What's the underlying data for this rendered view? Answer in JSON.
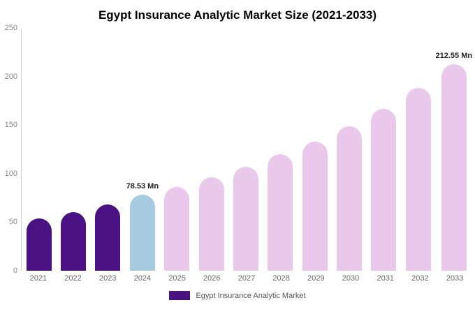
{
  "chart_data": {
    "type": "bar",
    "title": "Egypt Insurance Analytic Market Size (2021-2033)",
    "categories": [
      "2021",
      "2022",
      "2023",
      "2024",
      "2025",
      "2026",
      "2027",
      "2028",
      "2029",
      "2030",
      "2031",
      "2032",
      "2033"
    ],
    "values": [
      54,
      60,
      68,
      78.53,
      86,
      96,
      107,
      120,
      133,
      149,
      167,
      188,
      212.55
    ],
    "unit": "Mn",
    "ylim": [
      0,
      250
    ],
    "yticks": [
      0,
      50,
      100,
      150,
      200,
      250
    ],
    "grid": false,
    "bar_colors": [
      "#4b1284",
      "#4b1284",
      "#4b1284",
      "#a6cbe0",
      "#e9c8ec",
      "#e9c8ec",
      "#e9c8ec",
      "#e9c8ec",
      "#e9c8ec",
      "#e9c8ec",
      "#e9c8ec",
      "#e9c8ec",
      "#e9c8ec"
    ],
    "annotations": [
      {
        "category": "2024",
        "text": "78.53 Mn"
      },
      {
        "category": "2033",
        "text": "212.55 Mn"
      }
    ],
    "legend": {
      "position": "bottom",
      "items": [
        {
          "label": "Egypt Insurance Analytic Market",
          "color": "#4b1284"
        }
      ]
    }
  }
}
